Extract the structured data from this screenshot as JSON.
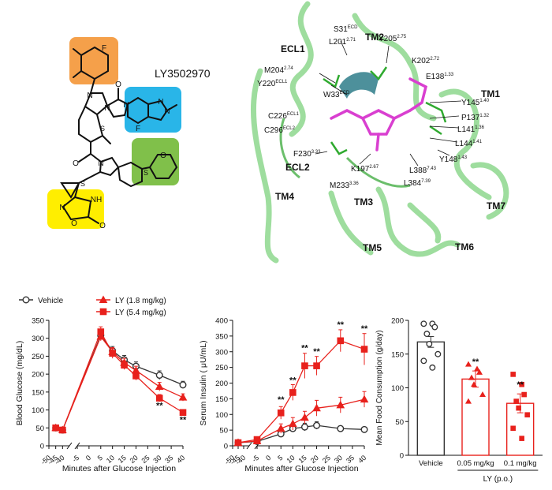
{
  "molecule": {
    "name": "LY3502970",
    "atoms": {
      "F1": "F",
      "F2": "F",
      "O1": "O",
      "O2": "O",
      "O3": "O",
      "O4": "O",
      "O5": "O",
      "N1": "N",
      "N2": "N",
      "N3": "N",
      "N4": "N",
      "N5": "N",
      "N6": "N",
      "N7": "N",
      "N8": "N",
      "NH": "NH",
      "S1": "S",
      "S2": "S",
      "S3": "S"
    },
    "colors": {
      "orange": "#f5a04a",
      "blue": "#29b5e8",
      "green": "#80c04a",
      "yellow": "#ffee00"
    }
  },
  "structure": {
    "labels": {
      "ECL1": "ECL1",
      "ECL2": "ECL2",
      "TM1": "TM1",
      "TM2": "TM2",
      "TM3": "TM3",
      "TM4": "TM4",
      "TM5": "TM5",
      "TM6": "TM6",
      "TM7": "TM7",
      "S31": "S31",
      "S31_sup": "ECD",
      "Y205": "Y205",
      "Y205_sup": "2.75",
      "L201": "L201",
      "L201_sup": "2.71",
      "M204": "M204",
      "M204_sup": "2.74",
      "K202": "K202",
      "K202_sup": "2.72",
      "E138": "E138",
      "E138_sup": "1.33",
      "Y220": "Y220",
      "Y220_sup": "ECL1",
      "W33": "W33",
      "W33_sup": "ECD",
      "Y145": "Y145",
      "Y145_sup": "1.40",
      "P137": "P137",
      "P137_sup": "1.32",
      "C226": "C226",
      "C226_sup": "ECL1",
      "L141": "L141",
      "L141_sup": "1.36",
      "C296": "C296",
      "C296_sup": "ECL2",
      "L144": "L144",
      "L144_sup": "1.41",
      "F230": "F230",
      "F230_sup": "3.33",
      "Y148": "Y148",
      "Y148_sup": "1.43",
      "K197": "K197",
      "K197_sup": "2.67",
      "L388": "L388",
      "L388_sup": "7.43",
      "M233": "M233",
      "M233_sup": "3.36",
      "L384": "L384",
      "L384_sup": "7.39"
    },
    "colors": {
      "helix": "#8ed88e",
      "helix_dark": "#5cb85c",
      "stick": "#2faa2f",
      "ligand": "#d93fd0",
      "teal": "#2e7d8a"
    }
  },
  "legend": [
    {
      "label": "Vehicle",
      "marker": "circle",
      "color": "#333333"
    },
    {
      "label": "LY (1.8 mg/kg)",
      "marker": "triangle",
      "color": "#e8211c"
    },
    {
      "label": "LY (5.4 mg/kg)",
      "marker": "square",
      "color": "#e8211c"
    }
  ],
  "chart_data": [
    {
      "type": "line",
      "ylabel": "Blood Glucose (mg/dL)",
      "xlabel": "Minutes after Glucose Injection",
      "ylim": [
        0,
        350
      ],
      "yticks": [
        "0",
        "50",
        "100",
        "150",
        "200",
        "250",
        "300",
        "350"
      ],
      "xticks": [
        "-50",
        "-45",
        "-40",
        "-5",
        "0",
        "5",
        "10",
        "15",
        "20",
        "25",
        "30",
        "35",
        "40"
      ],
      "x": [
        -45,
        -40,
        5,
        10,
        15,
        20,
        30,
        40
      ],
      "series": [
        {
          "name": "Vehicle",
          "values": [
            50,
            44,
            308,
            265,
            240,
            222,
            197,
            170
          ],
          "err": [
            4,
            4,
            12,
            12,
            12,
            12,
            12,
            10
          ]
        },
        {
          "name": "LY (1.8 mg/kg)",
          "values": [
            50,
            44,
            305,
            262,
            232,
            210,
            165,
            135
          ],
          "err": [
            4,
            4,
            12,
            12,
            12,
            12,
            12,
            10
          ]
        },
        {
          "name": "LY (5.4 mg/kg)",
          "values": [
            50,
            44,
            318,
            258,
            225,
            195,
            133,
            93
          ],
          "err": [
            4,
            4,
            14,
            14,
            12,
            12,
            10,
            8
          ]
        }
      ],
      "significance": [
        {
          "x": 30,
          "y": 105,
          "text": "**"
        },
        {
          "x": 40,
          "y": 65,
          "text": "**"
        }
      ]
    },
    {
      "type": "line",
      "ylabel": "Serum Insulin ( μU/mL)",
      "xlabel": "Minutes after Glucose Injection",
      "ylim": [
        0,
        400
      ],
      "yticks": [
        "0",
        "50",
        "100",
        "150",
        "200",
        "250",
        "300",
        "350",
        "400"
      ],
      "xticks": [
        "-50",
        "-45",
        "-40",
        "-5",
        "0",
        "5",
        "10",
        "15",
        "20",
        "25",
        "30",
        "35",
        "40"
      ],
      "x": [
        -45,
        -5,
        5,
        10,
        15,
        20,
        30,
        40
      ],
      "series": [
        {
          "name": "Vehicle",
          "values": [
            10,
            14,
            38,
            55,
            60,
            65,
            55,
            52
          ],
          "err": [
            3,
            4,
            8,
            10,
            12,
            12,
            8,
            6
          ]
        },
        {
          "name": "LY (1.8 mg/kg)",
          "values": [
            10,
            15,
            55,
            70,
            90,
            120,
            130,
            148
          ],
          "err": [
            3,
            4,
            15,
            20,
            20,
            25,
            25,
            25
          ]
        },
        {
          "name": "LY (5.4 mg/kg)",
          "values": [
            10,
            20,
            105,
            170,
            255,
            255,
            335,
            308
          ],
          "err": [
            3,
            5,
            20,
            25,
            40,
            30,
            35,
            50
          ]
        }
      ],
      "significance": [
        {
          "x": 5,
          "y": 138,
          "text": "**"
        },
        {
          "x": 10,
          "y": 200,
          "text": "**"
        },
        {
          "x": 15,
          "y": 303,
          "text": "**"
        },
        {
          "x": 20,
          "y": 292,
          "text": "**"
        },
        {
          "x": 30,
          "y": 377,
          "text": "**"
        },
        {
          "x": 40,
          "y": 365,
          "text": "**"
        }
      ]
    },
    {
      "type": "bar",
      "ylabel": "Mean Food Consumption (g/day)",
      "ylim": [
        0,
        200
      ],
      "yticks": [
        "0",
        "50",
        "100",
        "150",
        "200"
      ],
      "categories": [
        "Vehicle",
        "0.05 mg/kg",
        "0.1 mg/kg"
      ],
      "group_label": "LY (p.o.)",
      "values": [
        168,
        113,
        77
      ],
      "err": [
        8,
        12,
        14
      ],
      "points": [
        [
          195,
          195,
          190,
          180,
          165,
          150,
          140,
          130
        ],
        [
          135,
          128,
          123,
          115,
          105,
          90,
          80
        ],
        [
          120,
          105,
          90,
          80,
          70,
          60,
          40,
          25
        ]
      ],
      "significance": [
        {
          "index": 1,
          "text": "**"
        },
        {
          "index": 2,
          "text": "**"
        }
      ]
    }
  ]
}
